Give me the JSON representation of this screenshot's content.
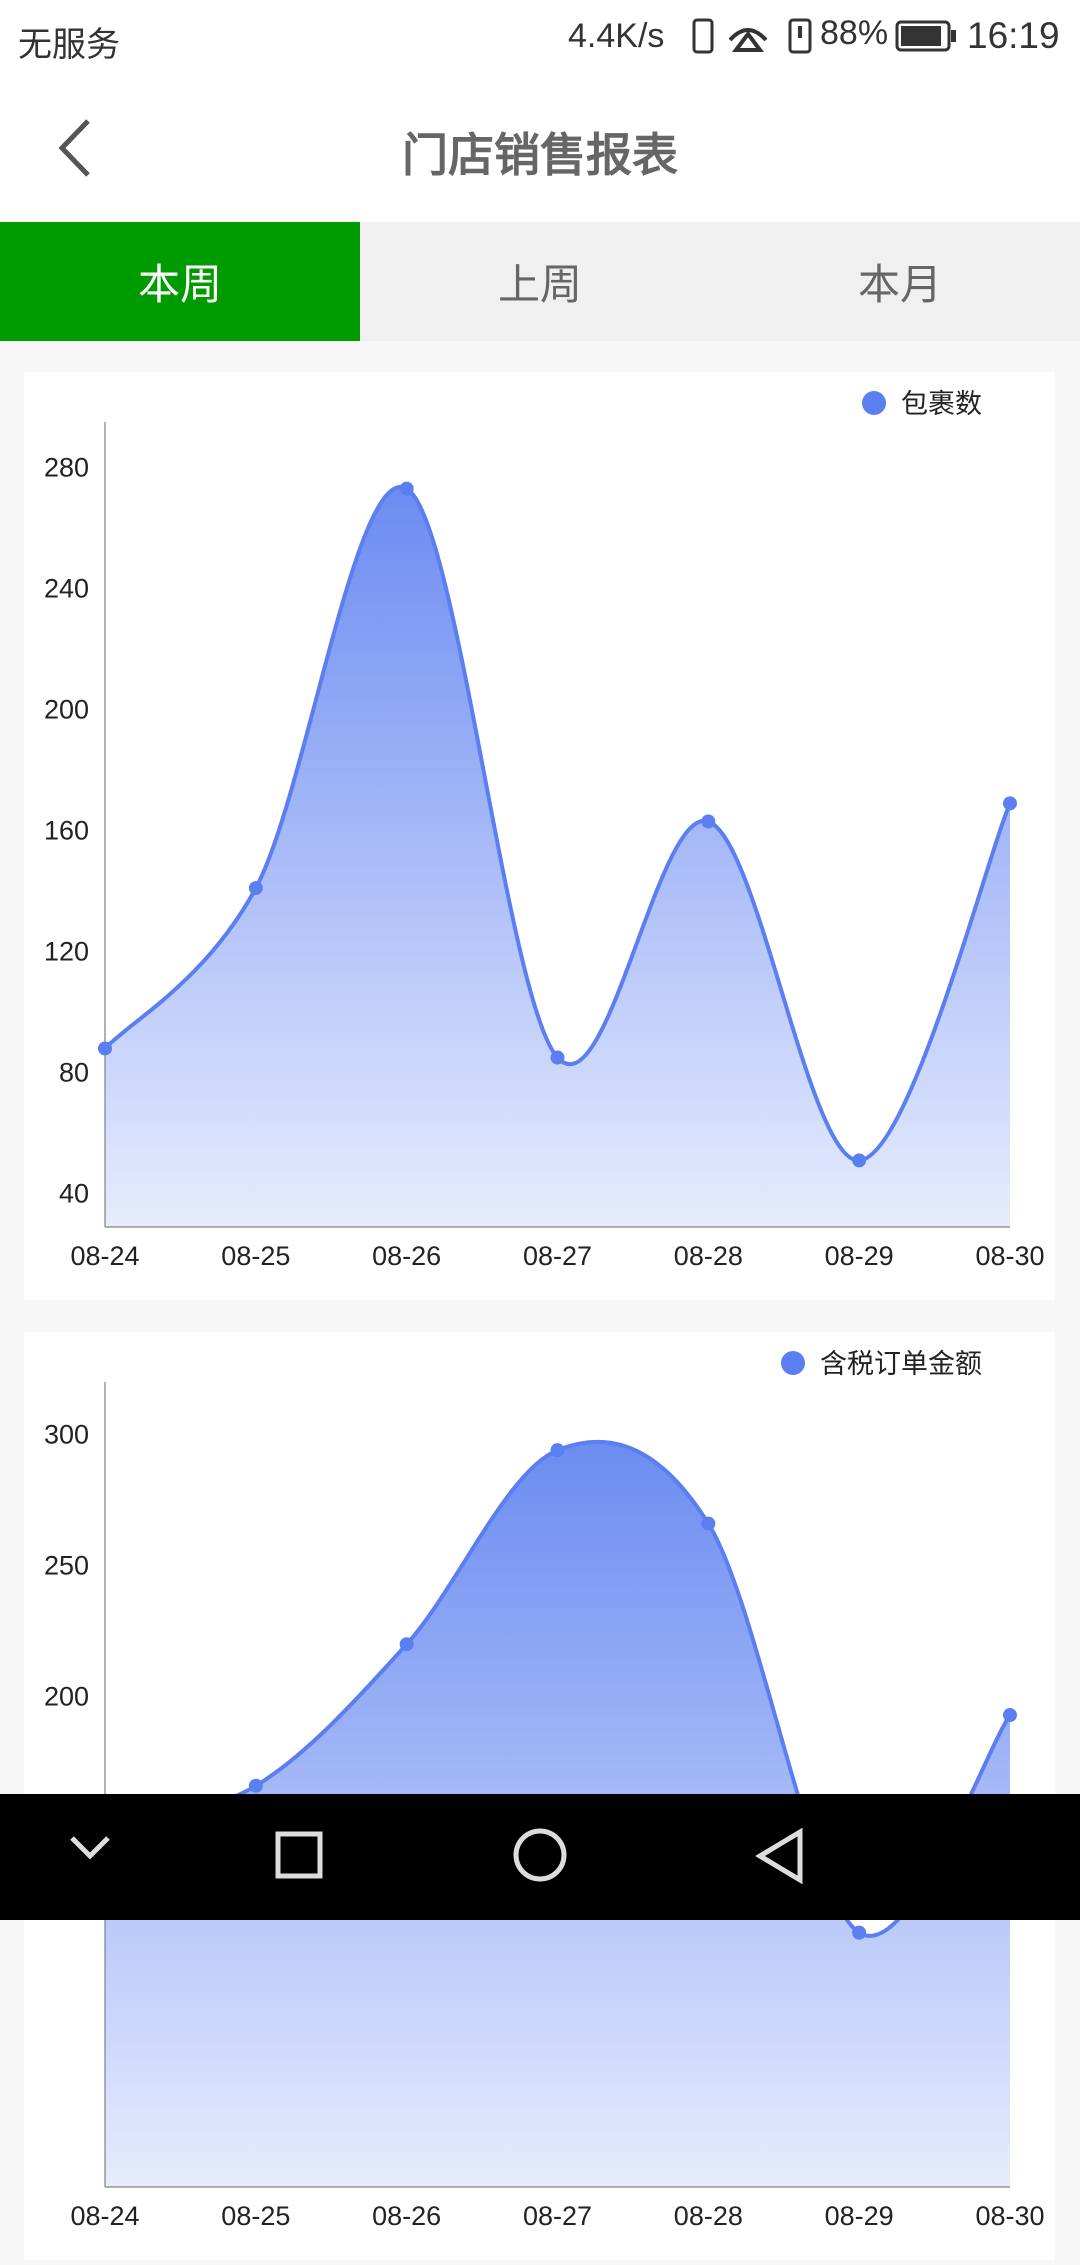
{
  "status_bar": {
    "carrier": "无服务",
    "speed": "4.4K/s",
    "battery": "88%",
    "time": "16:19"
  },
  "header": {
    "title": "门店销售报表"
  },
  "tabs": [
    {
      "label": "本周",
      "active": true
    },
    {
      "label": "上周",
      "active": false
    },
    {
      "label": "本月",
      "active": false
    }
  ],
  "chart_data": [
    {
      "type": "area",
      "smooth": true,
      "categories": [
        "08-24",
        "08-25",
        "08-26",
        "08-27",
        "08-28",
        "08-29",
        "08-30"
      ],
      "series": [
        {
          "name": "包裹数",
          "color": "#5b7ff0",
          "values": [
            88,
            141,
            273,
            85,
            163,
            51,
            169
          ]
        }
      ],
      "ylim": [
        29,
        295
      ],
      "yticks": [
        40,
        80,
        120,
        160,
        200,
        240,
        280
      ]
    },
    {
      "type": "area",
      "smooth": true,
      "categories": [
        "08-24",
        "08-25",
        "08-26",
        "08-27",
        "08-28",
        "08-29",
        "08-30"
      ],
      "series": [
        {
          "name": "含税订单金额",
          "color": "#5b7ff0",
          "values": [
            150,
            166,
            220,
            294,
            266,
            110,
            193
          ]
        }
      ],
      "ylim": [
        13,
        320
      ],
      "yticks": [
        200,
        250,
        300
      ]
    }
  ]
}
